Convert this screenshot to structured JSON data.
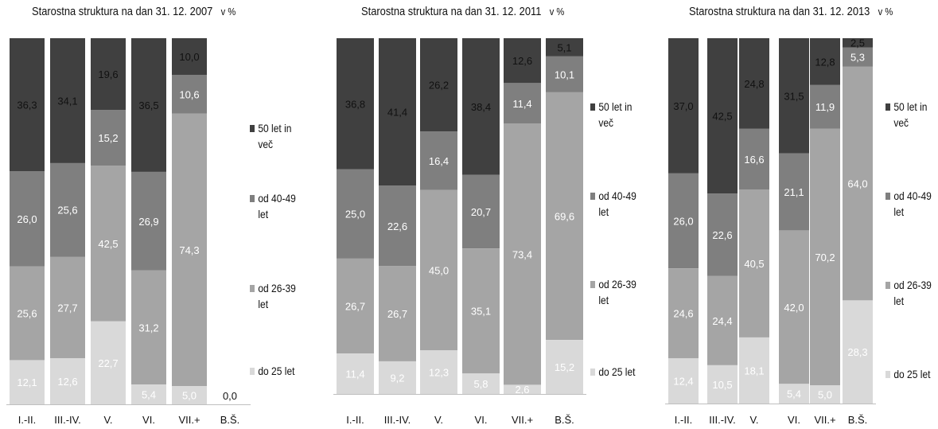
{
  "chart_data": [
    {
      "type": "bar",
      "stacked": true,
      "normalized": true,
      "title": "Starostna struktura na dan 31. 12. 2007",
      "unit": "v %",
      "categories": [
        "I.-II.",
        "III.-IV.",
        "V.",
        "VI.",
        "VII.+",
        "B.Š."
      ],
      "series": [
        {
          "name": "do 25 let",
          "values": [
            12.1,
            12.6,
            22.7,
            5.4,
            5.0,
            0.0
          ],
          "labels": [
            "12,1",
            "12,6",
            "22,7",
            "5,4",
            "5,0",
            "0,0"
          ]
        },
        {
          "name": "od 26-39 let",
          "values": [
            25.6,
            27.7,
            42.5,
            31.2,
            74.3,
            0
          ],
          "labels": [
            "25,6",
            "27,7",
            "42,5",
            "31,2",
            "74,3",
            ""
          ]
        },
        {
          "name": "od 40-49 let",
          "values": [
            26.0,
            25.6,
            15.2,
            26.9,
            10.6,
            0
          ],
          "labels": [
            "26,0",
            "25,6",
            "15,2",
            "26,9",
            "10,6",
            ""
          ]
        },
        {
          "name": "50 let in več",
          "values": [
            36.3,
            34.1,
            19.6,
            36.5,
            10.0,
            0
          ],
          "labels": [
            "36,3",
            "34,1",
            "19,6",
            "36,5",
            "10,0",
            ""
          ]
        }
      ]
    },
    {
      "type": "bar",
      "stacked": true,
      "normalized": true,
      "title": "Starostna struktura na dan 31. 12. 2011",
      "unit": "v %",
      "categories": [
        "I.-II.",
        "III.-IV.",
        "V.",
        "VI.",
        "VII.+",
        "B.Š."
      ],
      "series": [
        {
          "name": "do 25 let",
          "values": [
            11.4,
            9.2,
            12.3,
            5.8,
            2.6,
            15.2
          ],
          "labels": [
            "11,4",
            "9,2",
            "12,3",
            "5,8",
            "2,6",
            "15,2"
          ]
        },
        {
          "name": "od 26-39 let",
          "values": [
            26.7,
            26.7,
            45.0,
            35.1,
            73.4,
            69.6
          ],
          "labels": [
            "26,7",
            "26,7",
            "45,0",
            "35,1",
            "73,4",
            "69,6"
          ]
        },
        {
          "name": "od 40-49 let",
          "values": [
            25.0,
            22.6,
            16.4,
            20.7,
            11.4,
            10.1
          ],
          "labels": [
            "25,0",
            "22,6",
            "16,4",
            "20,7",
            "11,4",
            "10,1"
          ]
        },
        {
          "name": "50 let in več",
          "values": [
            36.8,
            41.4,
            26.2,
            38.4,
            12.6,
            5.1
          ],
          "labels": [
            "36,8",
            "41,4",
            "26,2",
            "38,4",
            "12,6",
            "5,1"
          ]
        }
      ]
    },
    {
      "type": "bar",
      "stacked": true,
      "normalized": true,
      "title": "Starostna struktura na dan 31. 12. 2013",
      "unit": "v %",
      "categories": [
        "I.-II.",
        "III.-IV.",
        "V.",
        "VI.",
        "VII.+",
        "B.Š."
      ],
      "series": [
        {
          "name": "do 25 let",
          "values": [
            12.4,
            10.5,
            18.1,
            5.4,
            5.0,
            28.3
          ],
          "labels": [
            "12,4",
            "10,5",
            "18,1",
            "5,4",
            "5,0",
            "28,3"
          ]
        },
        {
          "name": "od 26-39 let",
          "values": [
            24.6,
            24.4,
            40.5,
            42.0,
            70.2,
            64.0
          ],
          "labels": [
            "24,6",
            "24,4",
            "40,5",
            "42,0",
            "70,2",
            "64,0"
          ]
        },
        {
          "name": "od 40-49 let",
          "values": [
            26.0,
            22.6,
            16.6,
            21.1,
            11.9,
            5.3
          ],
          "labels": [
            "26,0",
            "22,6",
            "16,6",
            "21,1",
            "11,9",
            "5,3"
          ]
        },
        {
          "name": "50 let in več",
          "values": [
            37.0,
            42.5,
            24.8,
            31.5,
            12.8,
            2.5
          ],
          "labels": [
            "37,0",
            "42,5",
            "24,8",
            "31,5",
            "12,8",
            "2,5"
          ]
        }
      ]
    }
  ],
  "legend": [
    "50 let in\nveč",
    "od 40-49\nlet",
    "od 26-39\nlet",
    "do 25 let"
  ],
  "colors": {
    "50 let in več": "#404040",
    "od 40-49 let": "#7f7f7f",
    "od 26-39 let": "#a5a5a5",
    "do 25 let": "#d9d9d9"
  }
}
